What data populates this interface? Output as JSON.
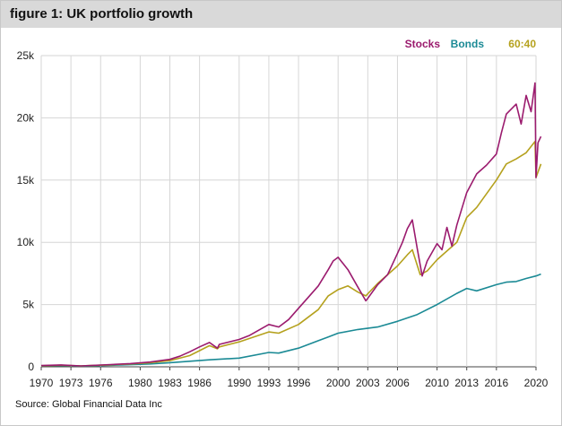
{
  "title": "figure 1: UK portfolio growth",
  "source": "Source: Global Financial Data Inc",
  "chart_data": {
    "type": "line",
    "title": "figure 1: UK portfolio growth",
    "xlabel": "",
    "ylabel": "",
    "xlim": [
      1970,
      2020
    ],
    "ylim": [
      0,
      25000
    ],
    "grid": true,
    "legend_position": "top-right",
    "x_ticks": [
      1970,
      1973,
      1976,
      1980,
      1983,
      1986,
      1990,
      1993,
      1996,
      2000,
      2003,
      2006,
      2010,
      2013,
      2016,
      2020
    ],
    "x_tick_labels": [
      "1970",
      "1973",
      "1976",
      "1980",
      "1983",
      "1986",
      "1990",
      "1993",
      "1996",
      "2000",
      "2003",
      "2006",
      "2010",
      "2013",
      "2016",
      "2020"
    ],
    "y_ticks": [
      0,
      5000,
      10000,
      15000,
      20000,
      25000
    ],
    "y_tick_labels": [
      "0",
      "5k",
      "10k",
      "15k",
      "20k",
      "25k"
    ],
    "series": [
      {
        "name": "Stocks",
        "color": "#9b1b6e",
        "x": [
          1970,
          1972,
          1974,
          1975,
          1977,
          1979,
          1981,
          1983,
          1984,
          1985,
          1986,
          1987,
          1987.8,
          1988,
          1990,
          1991,
          1993,
          1994,
          1995,
          1996,
          1997,
          1998,
          1999,
          1999.5,
          2000,
          2000.5,
          2001,
          2002,
          2002.8,
          2003,
          2004,
          2005,
          2006,
          2006.5,
          2007,
          2007.5,
          2008,
          2008.5,
          2009,
          2010,
          2010.5,
          2011,
          2011.5,
          2012,
          2013,
          2014,
          2015,
          2016,
          2016.5,
          2017,
          2018,
          2018.5,
          2019,
          2019.5,
          2019.9,
          2020,
          2020.2,
          2020.5
        ],
        "y": [
          100,
          150,
          70,
          110,
          180,
          260,
          380,
          600,
          850,
          1200,
          1600,
          1950,
          1500,
          1800,
          2200,
          2500,
          3400,
          3200,
          3800,
          4700,
          5600,
          6500,
          7800,
          8500,
          8800,
          8300,
          7800,
          6400,
          5300,
          5500,
          6600,
          7400,
          9100,
          10000,
          11100,
          11800,
          9500,
          7300,
          8500,
          9900,
          9400,
          11200,
          9700,
          11400,
          14000,
          15500,
          16200,
          17100,
          18800,
          20300,
          21100,
          19500,
          21800,
          20500,
          22800,
          15200,
          18000,
          18500
        ]
      },
      {
        "name": "Bonds",
        "color": "#1b8a95",
        "x": [
          1970,
          1972,
          1974,
          1975,
          1977,
          1979,
          1981,
          1983,
          1985,
          1987,
          1990,
          1993,
          1994,
          1996,
          1998,
          1999,
          2000,
          2002,
          2004,
          2006,
          2008,
          2010,
          2012,
          2013,
          2014,
          2016,
          2017,
          2018,
          2019,
          2020,
          2020.5
        ],
        "y": [
          80,
          100,
          60,
          80,
          120,
          170,
          230,
          330,
          450,
          560,
          700,
          1150,
          1100,
          1500,
          2100,
          2400,
          2700,
          3000,
          3200,
          3650,
          4200,
          5000,
          5900,
          6300,
          6100,
          6600,
          6800,
          6850,
          7100,
          7300,
          7450
        ]
      },
      {
        "name": "60:40",
        "color": "#b5a11d",
        "x": [
          1970,
          1972,
          1974,
          1975,
          1977,
          1979,
          1981,
          1983,
          1985,
          1986,
          1987,
          1987.8,
          1988,
          1990,
          1993,
          1994,
          1996,
          1998,
          1999,
          2000,
          2001,
          2002,
          2002.8,
          2004,
          2006,
          2007,
          2007.5,
          2008.3,
          2009,
          2010,
          2011,
          2012,
          2013,
          2014,
          2016,
          2017,
          2018,
          2019,
          2019.9,
          2020,
          2020.5
        ],
        "y": [
          90,
          130,
          70,
          100,
          160,
          230,
          330,
          500,
          900,
          1300,
          1700,
          1450,
          1600,
          2000,
          2800,
          2700,
          3400,
          4600,
          5700,
          6200,
          6500,
          6000,
          5700,
          6700,
          8100,
          9000,
          9400,
          7400,
          7700,
          8600,
          9300,
          10000,
          12000,
          12800,
          15000,
          16300,
          16700,
          17200,
          18100,
          15200,
          16300
        ]
      }
    ]
  }
}
